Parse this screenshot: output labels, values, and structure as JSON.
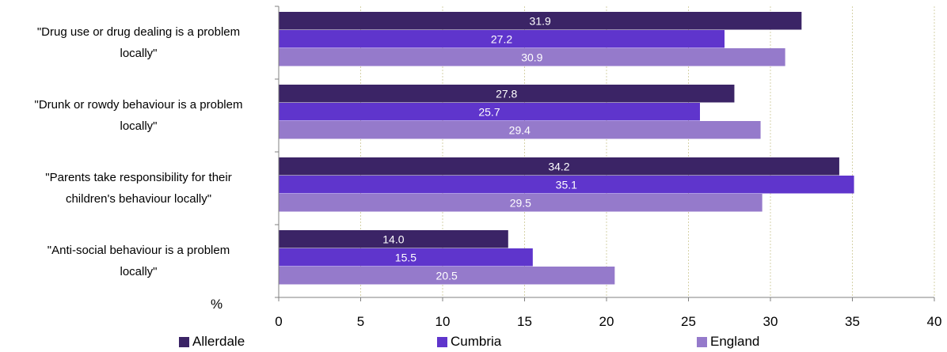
{
  "chart_data": {
    "type": "bar",
    "orientation": "horizontal",
    "categories": [
      "\"Drug use or drug dealing is a problem locally\"",
      "\"Drunk or rowdy behaviour is a problem locally\"",
      "\"Parents take responsibility for their children's behaviour locally\"",
      "\"Anti-social behaviour is a problem locally\""
    ],
    "category_lines": [
      [
        "\"Drug use or drug dealing is a problem",
        "locally\""
      ],
      [
        "\"Drunk or rowdy behaviour is a problem",
        "locally\""
      ],
      [
        "\"Parents take responsibility for their",
        "children's behaviour locally\""
      ],
      [
        "\"Anti-social behaviour is a problem",
        "locally\""
      ]
    ],
    "series": [
      {
        "name": "Allerdale",
        "color": "#3b2466",
        "values": [
          31.9,
          27.8,
          34.2,
          14.0
        ],
        "labels": [
          "31.9",
          "27.8",
          "34.2",
          "14.0"
        ]
      },
      {
        "name": "Cumbria",
        "color": "#5f35cc",
        "values": [
          27.2,
          25.7,
          35.1,
          15.5
        ],
        "labels": [
          "27.2",
          "25.7",
          "35.1",
          "15.5"
        ]
      },
      {
        "name": "England",
        "color": "#957acb",
        "values": [
          30.9,
          29.4,
          29.5,
          20.5
        ],
        "labels": [
          "30.9",
          "29.4",
          "29.5",
          "20.5"
        ]
      }
    ],
    "xlabel": "%",
    "xlim": [
      0,
      40
    ],
    "xticks": [
      "0",
      "5",
      "10",
      "15",
      "20",
      "25",
      "30",
      "35",
      "40"
    ],
    "grid": true,
    "legend_position": "bottom"
  }
}
